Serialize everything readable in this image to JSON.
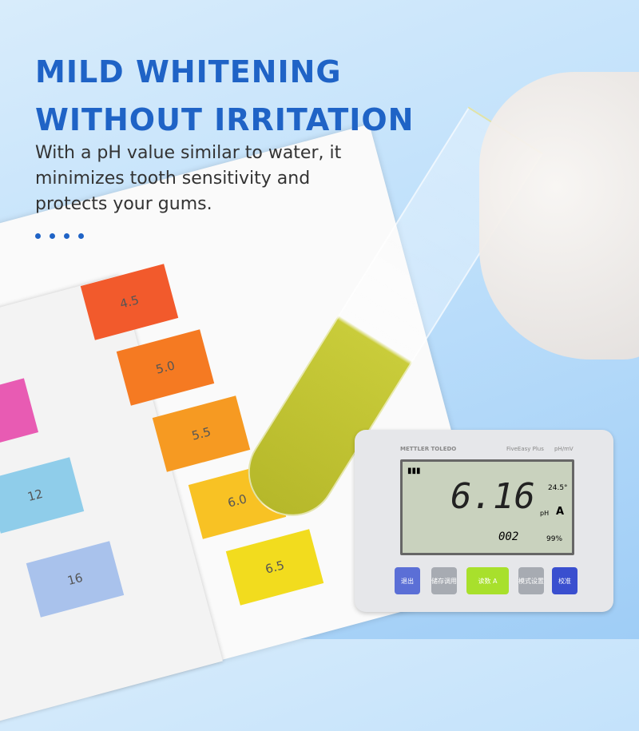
{
  "headline": {
    "line1": "MILD WHITENING",
    "line2": "WITHOUT IRRITATION"
  },
  "subtext": "With a pH value similar to water, it minimizes tooth  sensitivity and protects your gums.",
  "colors": {
    "accent": "#1f63c6"
  },
  "ph_chart": {
    "right": [
      {
        "label": "4.5",
        "color": "#f25a2c"
      },
      {
        "label": "5.0",
        "color": "#f57a22"
      },
      {
        "label": "5.5",
        "color": "#f69a22"
      },
      {
        "label": "6.0",
        "color": "#f8c224"
      },
      {
        "label": "6.5",
        "color": "#f2dc1e"
      }
    ],
    "left": [
      {
        "label": "12",
        "color": "#8fcdea"
      },
      {
        "label": "16",
        "color": "#a9c2ec"
      }
    ]
  },
  "meter": {
    "brand": "METTLER TOLEDO",
    "model": "FiveEasy Plus",
    "mode": "pH/mV",
    "reading": "6.16",
    "unit": "pH",
    "temp": "24.5°",
    "memory": "002",
    "slope": "99%",
    "auto": "A",
    "buttons": [
      "退出",
      "储存调用",
      "读数 A",
      "模式设置",
      "校准"
    ]
  }
}
